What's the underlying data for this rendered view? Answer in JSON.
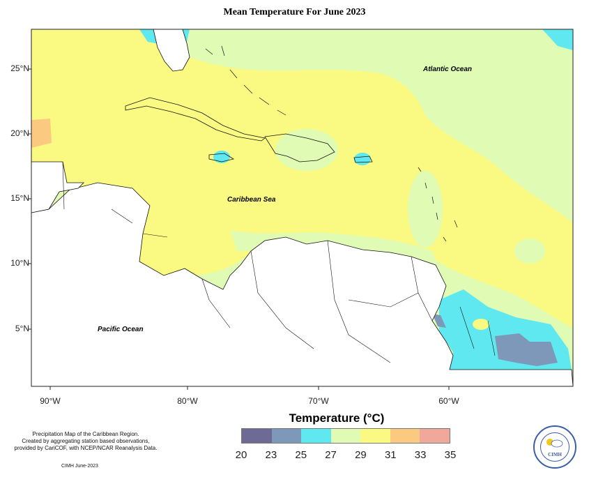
{
  "title": "Mean Temperature For June 2023",
  "map": {
    "extent": {
      "lon_min": -92,
      "lon_max": -51,
      "lat_min": 0,
      "lat_max": 27.5
    },
    "lon_ticks": [
      {
        "value": -90,
        "label": "90°W"
      },
      {
        "value": -80,
        "label": "80°W"
      },
      {
        "value": -70,
        "label": "70°W"
      },
      {
        "value": -60,
        "label": "60°W"
      }
    ],
    "lat_ticks": [
      {
        "value": 25,
        "label": "25°N"
      },
      {
        "value": 20,
        "label": "20°N"
      },
      {
        "value": 15,
        "label": "15°N"
      },
      {
        "value": 10,
        "label": "10°N"
      },
      {
        "value": 5,
        "label": "5°N"
      }
    ],
    "labels": [
      {
        "text": "Atlantic Ocean",
        "lon": -62,
        "lat": 25.0
      },
      {
        "text": "Caribbean Sea",
        "lon": -76,
        "lat": 15.0
      },
      {
        "text": "Pacific Ocean",
        "lon": -85,
        "lat": 5.0
      }
    ]
  },
  "legend": {
    "title": "Temperature (°C)",
    "ticks": [
      "20",
      "23",
      "25",
      "27",
      "29",
      "31",
      "33",
      "35"
    ],
    "colors": [
      "#6e6a96",
      "#7d98b8",
      "#5fe8ef",
      "#dffbb4",
      "#fafa82",
      "#fcc980",
      "#f0a89a"
    ]
  },
  "credit": {
    "line1": "Precipitation Map of the Caribbean Region.",
    "line2": "Created by aggregating station based observations,",
    "line3": "provided by CariCOF, with NCEP/NCAR Reanalysis Data.",
    "footer": "CIMH June-2023"
  },
  "logo": {
    "text": "CIMH"
  }
}
